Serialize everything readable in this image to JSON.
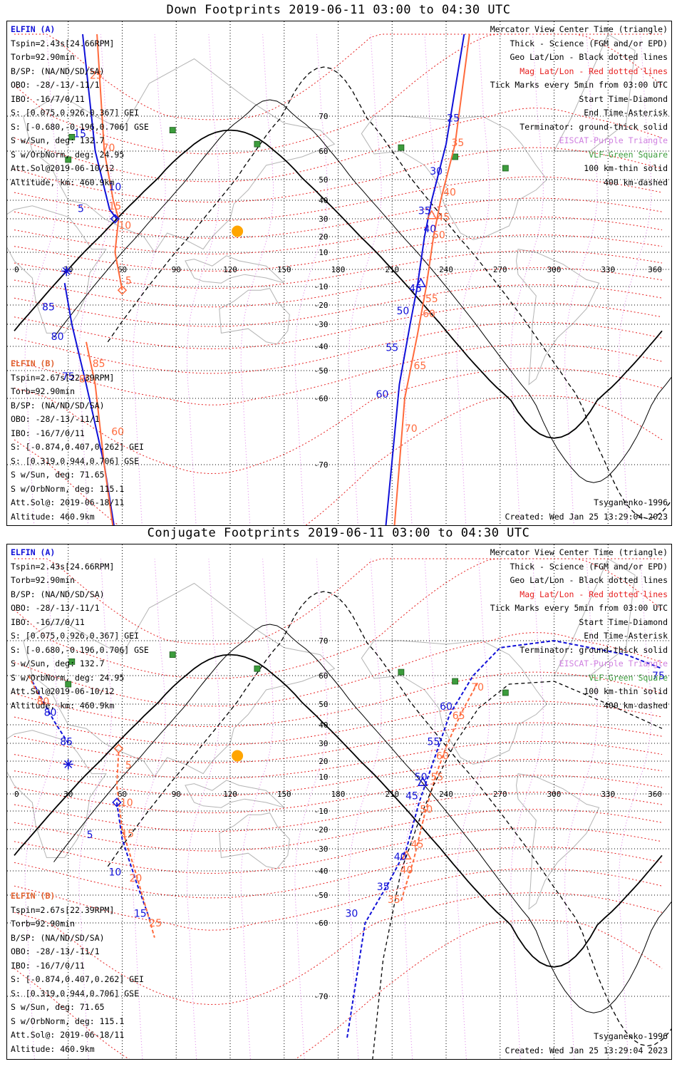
{
  "colors": {
    "elfin_a": "#1010d8",
    "elfin_b": "#ff6a3c",
    "mag_grid": "#e61e1e",
    "geo_grid": "#000000",
    "eiscat": "#cf7fe0",
    "vlf": "#3c9c3c",
    "sun": "#ffa500",
    "coast": "#b4b4b4"
  },
  "axes": {
    "lon_ticks": [
      "0",
      "30",
      "60",
      "90",
      "120",
      "150",
      "180",
      "210",
      "240",
      "270",
      "300",
      "330",
      "360"
    ],
    "lat_ticks_upper": [
      "70",
      "60",
      "50",
      "40",
      "30",
      "20",
      "10"
    ],
    "lat_ticks_lower": [
      "-10",
      "-20",
      "-30",
      "-40",
      "-50",
      "-60",
      "-70"
    ]
  },
  "panels": [
    {
      "title": "Down Footprints 2019-06-11 03:00 to 04:30 UTC",
      "elfin_a": {
        "header": "ELFIN (A)",
        "lines": [
          "Tspin=2.43s[24.66RPM]",
          "Torb=92.90min",
          "B/SP: (NA/ND/SD/SA)",
          "OBO: -28/-13/-11/1",
          "IBO: -16/7/0/11",
          "S: [0.075,0.926,0.367] GEI",
          "S: [-0.680,-0.196,0.706] GSE",
          "S w/Sun, deg: 132.7",
          "S w/OrbNorm, deg: 24.95",
          "Att.Sol@2019-06-10/12",
          "Altitude, km: 460.9km"
        ]
      },
      "elfin_b": {
        "header": "ELFIN (B)",
        "lines": [
          "Tspin=2.67s[22.39RPM]",
          "Torb=92.90min",
          "B/SP: (NA/ND/SD/SA)",
          "OBO: -28/-13/-11/1",
          "IBO: -16/7/0/11",
          "S: [-0.874,0.407,0.262] GEI",
          "S: [0.319,0.944,0.706] GSE",
          "S w/Sun, deg: 71.65",
          "S w/OrbNorm, deg: 115.1",
          "Att.Sol@: 2019-06-18/11",
          "Altitude: 460.9km"
        ]
      },
      "legend": {
        "l1": "Mercator View Center Time (triangle)",
        "l2": "Thick - Science (FGM and/or EPD)",
        "l3": "Geo Lat/Lon - Black dotted lines",
        "l4": "Mag Lat/Lon - Red dotted lines",
        "l5": "Tick Marks every 5min from 03:00 UTC",
        "l6": "Start Time-Diamond",
        "l7": "End Time-Asterisk",
        "l8": "Terminator: ground-thick solid",
        "l9": "EISCAT-Purple Triangle",
        "l10": "VLF-Green Square",
        "l11": "100 km-thin solid",
        "l12": "400 km-dashed"
      },
      "footer": {
        "model": "Tsyganenko-1996",
        "created": "Created: Wed Jan 25 13:29:04 2023"
      },
      "track_labels": {
        "a": [
          {
            "t": "5",
            "lon": 37.0,
            "lat": 35.5
          },
          {
            "t": "10",
            "lon": 56.0,
            "lat": 46.5
          },
          {
            "t": "15",
            "lon": 36.5,
            "lat": 65.0
          },
          {
            "t": "85",
            "lon": 19.0,
            "lat": -21.0
          },
          {
            "t": "80",
            "lon": 24.0,
            "lat": -35.5
          },
          {
            "t": "75",
            "lon": 30.0,
            "lat": -52.0
          },
          {
            "t": "25",
            "lon": 244.0,
            "lat": 69.5
          },
          {
            "t": "30",
            "lon": 234.5,
            "lat": 53.0
          },
          {
            "t": "35",
            "lon": 228.0,
            "lat": 34.5
          },
          {
            "t": "40",
            "lon": 231.0,
            "lat": 24.5
          },
          {
            "t": "45",
            "lon": 223.0,
            "lat": -11.0
          },
          {
            "t": "50",
            "lon": 216.0,
            "lat": -23.0
          },
          {
            "t": "55",
            "lon": 210.0,
            "lat": -40.5
          },
          {
            "t": "60",
            "lon": 204.5,
            "lat": -58.5
          }
        ],
        "b": [
          {
            "t": "5",
            "lon": 63.5,
            "lat": -6.5
          },
          {
            "t": "10",
            "lon": 61.5,
            "lat": 26.5
          },
          {
            "t": "15",
            "lon": 56.0,
            "lat": 37.0
          },
          {
            "t": "70",
            "lon": 52.5,
            "lat": 61.0
          },
          {
            "t": "25",
            "lon": 45.5,
            "lat": 75.0
          },
          {
            "t": "85",
            "lon": 47.0,
            "lat": -47.0
          },
          {
            "t": "80",
            "lon": 39.5,
            "lat": -53.0
          },
          {
            "t": "60",
            "lon": 57.5,
            "lat": -65.0
          },
          {
            "t": "35",
            "lon": 246.5,
            "lat": 62.5
          },
          {
            "t": "40",
            "lon": 242.0,
            "lat": 44.0
          },
          {
            "t": "45",
            "lon": 238.5,
            "lat": 31.0
          },
          {
            "t": "50",
            "lon": 236.0,
            "lat": 21.0
          },
          {
            "t": "55",
            "lon": 232.0,
            "lat": -16.5
          },
          {
            "t": "60",
            "lon": 230.5,
            "lat": -24.5
          },
          {
            "t": "65",
            "lon": 225.5,
            "lat": -48.0
          },
          {
            "t": "70",
            "lon": 220.5,
            "lat": -64.5
          }
        ]
      }
    },
    {
      "title": "Conjugate Footprints 2019-06-11 03:00 to 04:30 UTC",
      "elfin_a": {
        "header": "ELFIN (A)",
        "lines": [
          "Tspin=2.43s[24.66RPM]",
          "Torb=92.90min",
          "B/SP: (NA/ND/SD/SA)",
          "OBO: -28/-13/-11/1",
          "IBO: -16/7/0/11",
          "S: [0.075,0.926,0.367] GEI",
          "S: [-0.680,-0.196,0.706] GSE",
          "S w/Sun, deg: 132.7",
          "S w/OrbNorm, deg: 24.95",
          "Att.Sol@2019-06-10/12",
          "Altitude, km: 460.9km"
        ]
      },
      "elfin_b": {
        "header": "ELFIN (B)",
        "lines": [
          "Tspin=2.67s[22.39RPM]",
          "Torb=92.90min",
          "B/SP: (NA/ND/SD/SA)",
          "OBO: -28/-13/-11/1",
          "IBO: -16/7/0/11",
          "S: [-0.874,0.407,0.262] GEI",
          "S: [0.319,0.944,0.706] GSE",
          "S w/Sun, deg: 71.65",
          "S w/OrbNorm, deg: 115.1",
          "Att.Sol@: 2019-06-18/11",
          "Altitude: 460.9km"
        ]
      },
      "legend": {
        "l1": "Mercator View Center Time (triangle)",
        "l2": "Thick - Science (FGM and/or EPD)",
        "l3": "Geo Lat/Lon - Black dotted lines",
        "l4": "Mag Lat/Lon - Red dotted lines",
        "l5": "Tick Marks every 5min from 03:00 UTC",
        "l6": "Start Time-Diamond",
        "l7": "End Time-Asterisk",
        "l8": "Terminator: ground-thick solid",
        "l9": "EISCAT-Purple Triangle",
        "l10": "VLF-Green Square",
        "l11": "100 km-thin solid",
        "l12": "400 km-dashed"
      },
      "footer": {
        "model": "Tsyganenko-1996",
        "created": "Created: Wed Jan 25 13:29:04 2023"
      },
      "track_labels": {
        "a": [
          {
            "t": "80",
            "lon": 20.0,
            "lat": 46.0
          },
          {
            "t": "85",
            "lon": 29.0,
            "lat": 31.0
          },
          {
            "t": "5",
            "lon": 42.0,
            "lat": -22.5
          },
          {
            "t": "10",
            "lon": 56.0,
            "lat": -40.5
          },
          {
            "t": "15",
            "lon": 70.0,
            "lat": -56.5
          },
          {
            "t": "30",
            "lon": 187.5,
            "lat": -56.5
          },
          {
            "t": "35",
            "lon": 205.0,
            "lat": -46.5
          },
          {
            "t": "40",
            "lon": 214.5,
            "lat": -33.5
          },
          {
            "t": "45",
            "lon": 221.0,
            "lat": -1.0
          },
          {
            "t": "50",
            "lon": 226.0,
            "lat": 10.0
          },
          {
            "t": "55",
            "lon": 233.0,
            "lat": 31.0
          },
          {
            "t": "60",
            "lon": 240.0,
            "lat": 49.0
          },
          {
            "t": "75",
            "lon": 358.0,
            "lat": 60.0
          }
        ],
        "b": [
          {
            "t": "5",
            "lon": 63.5,
            "lat": 17.5
          },
          {
            "t": "10",
            "lon": 62.5,
            "lat": -5.0
          },
          {
            "t": "15",
            "lon": 63.0,
            "lat": -22.0
          },
          {
            "t": "20",
            "lon": 67.5,
            "lat": -43.0
          },
          {
            "t": "25",
            "lon": 78.5,
            "lat": -60.0
          },
          {
            "t": "80",
            "lon": 16.0,
            "lat": 51.0
          },
          {
            "t": "35",
            "lon": 211.0,
            "lat": -51.5
          },
          {
            "t": "40",
            "lon": 218.0,
            "lat": -39.5
          },
          {
            "t": "45",
            "lon": 224.0,
            "lat": -27.5
          },
          {
            "t": "50",
            "lon": 229.0,
            "lat": -9.0
          },
          {
            "t": "55",
            "lon": 235.0,
            "lat": 10.0
          },
          {
            "t": "60",
            "lon": 238.0,
            "lat": 23.0
          },
          {
            "t": "65",
            "lon": 247.0,
            "lat": 44.5
          },
          {
            "t": "70",
            "lon": 257.5,
            "lat": 56.0
          }
        ]
      }
    }
  ]
}
